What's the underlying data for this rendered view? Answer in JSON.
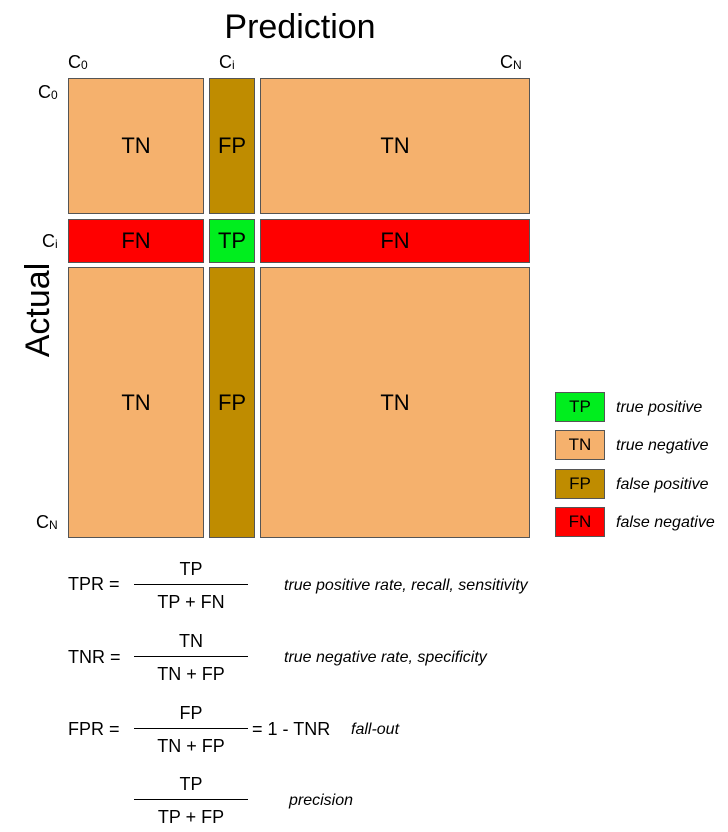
{
  "title": "Prediction",
  "y_title": "Actual",
  "col_labels": {
    "c0": "C",
    "c0_sub": "0",
    "ci": "C",
    "ci_sub": "i",
    "cn": "C",
    "cn_sub": "N"
  },
  "row_labels": {
    "c0": "C",
    "c0_sub": "0",
    "ci": "C",
    "ci_sub": "i",
    "cn": "C",
    "cn_sub": "N"
  },
  "cells": {
    "r0c0": "TN",
    "r0c1": "FP",
    "r0c2": "TN",
    "r1c0": "FN",
    "r1c1": "TP",
    "r1c2": "FN",
    "r2c0": "TN",
    "r2c1": "FP",
    "r2c2": "TN"
  },
  "colors": {
    "tp": "#00ee1e",
    "tn": "#f5b16d",
    "fp": "#bf8c00",
    "fn": "#ff0000"
  },
  "legend": [
    {
      "code": "TP",
      "text": "true positive"
    },
    {
      "code": "TN",
      "text": "true negative"
    },
    {
      "code": "FP",
      "text": "false positive"
    },
    {
      "code": "FN",
      "text": "false negative"
    }
  ],
  "formulas": [
    {
      "lhs": "TPR =",
      "num": "TP",
      "den": "TP + FN",
      "suffix": "",
      "desc": "true positive rate, recall, sensitivity"
    },
    {
      "lhs": "TNR =",
      "num": "TN",
      "den": "TN + FP",
      "suffix": "",
      "desc": "true negative rate, specificity"
    },
    {
      "lhs": "FPR =",
      "num": "FP",
      "den": "TN + FP",
      "suffix": "= 1 - TNR",
      "desc": "fall-out"
    },
    {
      "lhs": "",
      "num": "TP",
      "den": "TP + FP",
      "suffix": "",
      "desc": "precision"
    }
  ]
}
